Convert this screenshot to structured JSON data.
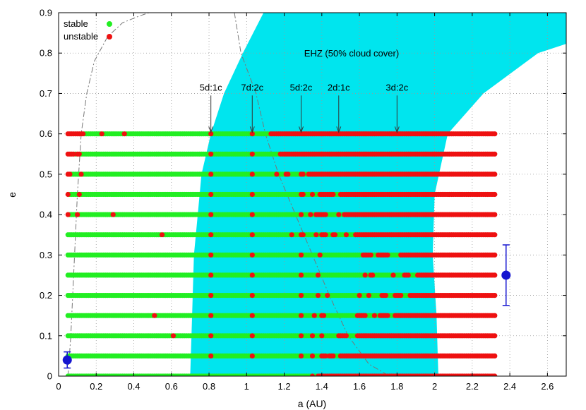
{
  "chart_data": {
    "type": "scatter",
    "xlabel": "a (AU)",
    "ylabel": "e",
    "xlim": [
      0,
      2.7
    ],
    "ylim": [
      0,
      0.9
    ],
    "x_ticks": [
      "0",
      "0.2",
      "0.4",
      "0.6",
      "0.8",
      "1",
      "1.2",
      "1.4",
      "1.6",
      "1.8",
      "2",
      "2.2",
      "2.4",
      "2.6"
    ],
    "y_ticks": [
      "0",
      "0.1",
      "0.2",
      "0.3",
      "0.4",
      "0.5",
      "0.6",
      "0.7",
      "0.8",
      "0.9"
    ],
    "grid": true,
    "legend_position": "top-left",
    "legend": [
      {
        "label": "stable",
        "color": "#22ee22"
      },
      {
        "label": "unstable",
        "color": "#ee1111"
      }
    ],
    "colors": {
      "stable": "#22ee22",
      "unstable": "#ee1111",
      "ehz_fill": "#00e5ee",
      "planet": "#1515d0",
      "grid": "#999999",
      "curve": "#777777"
    },
    "ehz_label": "EHZ (50% cloud cover)",
    "ehz_region": {
      "left_edge": [
        [
          0.7,
          0.0
        ],
        [
          0.71,
          0.15
        ],
        [
          0.72,
          0.3
        ],
        [
          0.74,
          0.4
        ],
        [
          0.76,
          0.5
        ],
        [
          0.81,
          0.6
        ],
        [
          0.88,
          0.7
        ],
        [
          0.98,
          0.8
        ],
        [
          1.09,
          0.9
        ]
      ],
      "right_edge": [
        [
          2.02,
          0.0
        ],
        [
          2.01,
          0.15
        ],
        [
          1.99,
          0.3
        ],
        [
          2.0,
          0.45
        ],
        [
          2.07,
          0.6
        ],
        [
          2.26,
          0.7
        ],
        [
          2.55,
          0.8
        ],
        [
          2.7,
          0.823
        ]
      ]
    },
    "resonances": [
      {
        "label": "5d:1c",
        "a": 0.81
      },
      {
        "label": "7d:2c",
        "a": 1.03
      },
      {
        "label": "5d:2c",
        "a": 1.29
      },
      {
        "label": "2d:1c",
        "a": 1.49
      },
      {
        "label": "3d:2c",
        "a": 1.8
      }
    ],
    "arrow_tip_e": 0.604,
    "arrow_base_e": 0.695,
    "scan": {
      "e_values": [
        0,
        0.05,
        0.1,
        0.15,
        0.2,
        0.25,
        0.3,
        0.35,
        0.4,
        0.45,
        0.5,
        0.55,
        0.6
      ],
      "a_start": 0.05,
      "a_end": 2.32,
      "a_step": 0.01,
      "rows": [
        {
          "e": 0.6,
          "unstable": [
            [
              0.05,
              0.13
            ],
            [
              0.23,
              0.23
            ],
            [
              0.35,
              0.35
            ],
            [
              0.81,
              0.81
            ],
            [
              1.03,
              1.03
            ],
            [
              1.13,
              2.32
            ]
          ]
        },
        {
          "e": 0.55,
          "unstable": [
            [
              0.05,
              0.08
            ],
            [
              0.1,
              0.11
            ],
            [
              0.81,
              0.81
            ],
            [
              1.03,
              1.03
            ],
            [
              1.18,
              2.32
            ]
          ]
        },
        {
          "e": 0.5,
          "unstable": [
            [
              0.05,
              0.06
            ],
            [
              0.12,
              0.12
            ],
            [
              0.81,
              0.81
            ],
            [
              1.03,
              1.03
            ],
            [
              1.16,
              1.16
            ],
            [
              1.21,
              1.22
            ],
            [
              1.29,
              1.3
            ],
            [
              1.33,
              2.32
            ]
          ]
        },
        {
          "e": 0.45,
          "unstable": [
            [
              0.05,
              0.05
            ],
            [
              0.11,
              0.11
            ],
            [
              0.81,
              0.81
            ],
            [
              1.03,
              1.03
            ],
            [
              1.29,
              1.3
            ],
            [
              1.35,
              1.35
            ],
            [
              1.39,
              1.46
            ],
            [
              1.5,
              2.32
            ]
          ]
        },
        {
          "e": 0.4,
          "unstable": [
            [
              0.05,
              0.05
            ],
            [
              0.1,
              0.1
            ],
            [
              0.29,
              0.29
            ],
            [
              0.81,
              0.81
            ],
            [
              1.03,
              1.03
            ],
            [
              1.29,
              1.29
            ],
            [
              1.34,
              1.34
            ],
            [
              1.37,
              1.42
            ],
            [
              1.49,
              1.49
            ],
            [
              1.52,
              2.32
            ]
          ]
        },
        {
          "e": 0.35,
          "unstable": [
            [
              0.55,
              0.55
            ],
            [
              0.81,
              0.81
            ],
            [
              1.03,
              1.03
            ],
            [
              1.24,
              1.24
            ],
            [
              1.29,
              1.3
            ],
            [
              1.37,
              1.37
            ],
            [
              1.4,
              1.42
            ],
            [
              1.46,
              1.47
            ],
            [
              1.53,
              1.53
            ],
            [
              1.58,
              2.32
            ]
          ]
        },
        {
          "e": 0.3,
          "unstable": [
            [
              0.81,
              0.81
            ],
            [
              1.03,
              1.03
            ],
            [
              1.29,
              1.29
            ],
            [
              1.39,
              1.39
            ],
            [
              1.62,
              1.66
            ],
            [
              1.7,
              1.75
            ],
            [
              1.82,
              2.32
            ]
          ]
        },
        {
          "e": 0.25,
          "unstable": [
            [
              0.81,
              0.81
            ],
            [
              1.03,
              1.03
            ],
            [
              1.29,
              1.29
            ],
            [
              1.38,
              1.38
            ],
            [
              1.63,
              1.63
            ],
            [
              1.66,
              1.67
            ],
            [
              1.78,
              1.78
            ],
            [
              1.84,
              1.86
            ],
            [
              1.91,
              2.32
            ]
          ]
        },
        {
          "e": 0.2,
          "unstable": [
            [
              0.81,
              0.81
            ],
            [
              1.03,
              1.03
            ],
            [
              1.29,
              1.29
            ],
            [
              1.38,
              1.38
            ],
            [
              1.43,
              1.43
            ],
            [
              1.6,
              1.6
            ],
            [
              1.65,
              1.65
            ],
            [
              1.72,
              1.74
            ],
            [
              1.79,
              1.82
            ],
            [
              1.87,
              2.32
            ]
          ]
        },
        {
          "e": 0.15,
          "unstable": [
            [
              0.51,
              0.51
            ],
            [
              0.81,
              0.81
            ],
            [
              1.03,
              1.03
            ],
            [
              1.29,
              1.29
            ],
            [
              1.36,
              1.36
            ],
            [
              1.4,
              1.41
            ],
            [
              1.59,
              1.63
            ],
            [
              1.68,
              1.68
            ],
            [
              1.71,
              1.75
            ],
            [
              1.79,
              2.32
            ]
          ]
        },
        {
          "e": 0.1,
          "unstable": [
            [
              0.61,
              0.61
            ],
            [
              0.81,
              0.81
            ],
            [
              1.03,
              1.03
            ],
            [
              1.29,
              1.29
            ],
            [
              1.35,
              1.35
            ],
            [
              1.4,
              1.4
            ],
            [
              1.49,
              1.53
            ],
            [
              1.59,
              2.32
            ]
          ]
        },
        {
          "e": 0.05,
          "unstable": [
            [
              0.81,
              0.81
            ],
            [
              1.03,
              1.03
            ],
            [
              1.29,
              1.29
            ],
            [
              1.35,
              1.35
            ],
            [
              1.4,
              1.42
            ],
            [
              1.44,
              1.46
            ],
            [
              1.5,
              2.32
            ]
          ]
        },
        {
          "e": 0.0,
          "unstable": [
            [
              1.35,
              1.35
            ],
            [
              1.38,
              2.32
            ]
          ]
        }
      ]
    },
    "planets": [
      {
        "a": 0.046,
        "e": 0.04,
        "err_low": 0.02,
        "err_high": 0.02
      },
      {
        "a": 2.38,
        "e": 0.25,
        "err_low": 0.075,
        "err_high": 0.075
      }
    ],
    "curves": {
      "inner": [
        [
          0.05,
          0.0
        ],
        [
          0.065,
          0.1
        ],
        [
          0.08,
          0.25
        ],
        [
          0.1,
          0.45
        ],
        [
          0.12,
          0.6
        ],
        [
          0.15,
          0.7
        ],
        [
          0.19,
          0.78
        ],
        [
          0.26,
          0.84
        ],
        [
          0.34,
          0.875
        ],
        [
          0.42,
          0.89
        ],
        [
          0.48,
          0.9
        ]
      ],
      "outer": [
        [
          0.935,
          0.9
        ],
        [
          0.97,
          0.8
        ],
        [
          1.05,
          0.7
        ],
        [
          1.1,
          0.6
        ],
        [
          1.17,
          0.5
        ],
        [
          1.26,
          0.4
        ],
        [
          1.35,
          0.3
        ],
        [
          1.44,
          0.2
        ],
        [
          1.54,
          0.1
        ],
        [
          1.65,
          0.03
        ],
        [
          1.76,
          0.0
        ]
      ]
    }
  }
}
